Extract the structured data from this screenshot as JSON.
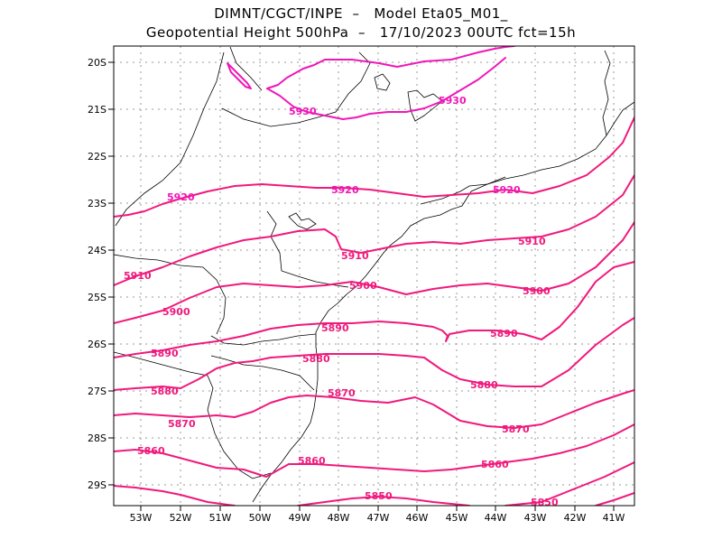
{
  "title": {
    "line1": "DIMNT/CGCT/INPE  –   Model Eta05_M01_",
    "line2": "Geopotential Height 500hPa  –   17/10/2023 00UTC fct=15h"
  },
  "axes": {
    "lat_labels": [
      "20S",
      "21S",
      "22S",
      "23S",
      "24S",
      "25S",
      "26S",
      "27S",
      "28S",
      "29S"
    ],
    "lon_labels": [
      "53W",
      "52W",
      "51W",
      "50W",
      "49W",
      "48W",
      "47W",
      "46W",
      "45W",
      "44W",
      "43W",
      "42W",
      "41W"
    ]
  },
  "colors": {
    "contour": "#f0197c",
    "contour_high": "#ef17b8",
    "coast": "#000000",
    "grid": "#9a9a9a"
  },
  "contour_labels": [
    {
      "text": "5930"
    },
    {
      "text": "5930"
    },
    {
      "text": "5920"
    },
    {
      "text": "5920"
    },
    {
      "text": "5920"
    },
    {
      "text": "5910"
    },
    {
      "text": "5910"
    },
    {
      "text": "5910"
    },
    {
      "text": "5900"
    },
    {
      "text": "5900"
    },
    {
      "text": "5900"
    },
    {
      "text": "5890"
    },
    {
      "text": "5890"
    },
    {
      "text": "5890"
    },
    {
      "text": "5880"
    },
    {
      "text": "5880"
    },
    {
      "text": "5880"
    },
    {
      "text": "5870"
    },
    {
      "text": "5870"
    },
    {
      "text": "5870"
    },
    {
      "text": "5860"
    },
    {
      "text": "5860"
    },
    {
      "text": "5860"
    },
    {
      "text": "5850"
    },
    {
      "text": "5850"
    }
  ]
}
